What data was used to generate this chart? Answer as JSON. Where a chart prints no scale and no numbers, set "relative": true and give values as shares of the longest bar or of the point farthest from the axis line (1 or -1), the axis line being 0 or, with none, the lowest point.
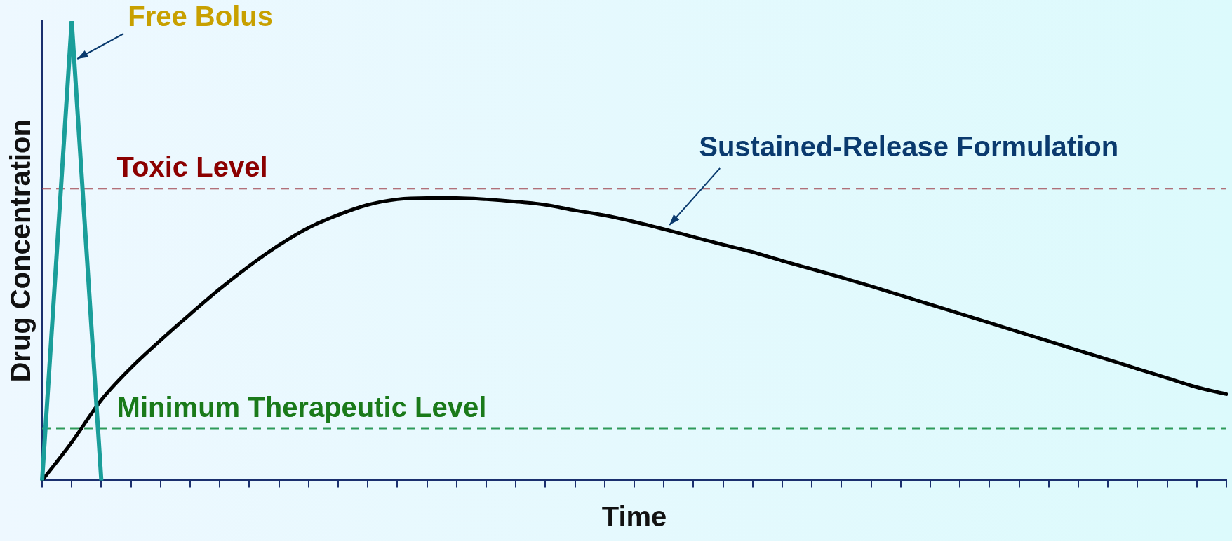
{
  "chart_data": {
    "type": "line",
    "xlabel": "Time",
    "ylabel": "Drug Concentration",
    "categories": [
      null,
      null,
      null,
      null,
      null,
      null,
      null,
      null,
      null,
      null,
      null,
      null,
      null,
      null,
      null,
      null,
      null,
      null,
      null,
      null,
      null,
      null,
      null,
      null,
      null,
      null,
      null,
      null,
      null,
      null,
      null,
      null,
      null,
      null,
      null,
      null,
      null,
      null,
      null,
      null,
      null
    ],
    "series": [
      {
        "name": "Free Bolus",
        "color": "#1a9e9a",
        "values": [
          0,
          1,
          0,
          null,
          null,
          null,
          null,
          null,
          null,
          null,
          null,
          null,
          null,
          null,
          null,
          null,
          null,
          null,
          null,
          null,
          null,
          null,
          null,
          null,
          null,
          null,
          null,
          null,
          null,
          null,
          null,
          null,
          null,
          null,
          null,
          null,
          null,
          null,
          null,
          null,
          null
        ]
      },
      {
        "name": "Sustained-Release Formulation",
        "color": "#000000",
        "values": [
          0,
          0.083,
          0.175,
          0.245,
          0.305,
          0.362,
          0.417,
          0.467,
          0.512,
          0.55,
          0.578,
          0.6,
          0.612,
          0.615,
          0.615,
          0.612,
          0.607,
          0.6,
          0.588,
          0.577,
          0.563,
          0.547,
          0.53,
          0.513,
          0.497,
          0.478,
          0.46,
          0.442,
          0.423,
          0.403,
          0.383,
          0.363,
          0.343,
          0.323,
          0.303,
          0.283,
          0.263,
          0.243,
          0.223,
          0.203,
          0.188
        ]
      }
    ],
    "relative": true,
    "ref_lines": [
      {
        "axis": "y",
        "value": 0.635,
        "label": "Toxic Level",
        "color": "#a0434e",
        "line_style": "dashed"
      },
      {
        "axis": "y",
        "value": 0.113,
        "label": "Minimum Therapeutic Level",
        "color": "#2e9a5a",
        "line_style": "dashed"
      }
    ],
    "legend": false,
    "grid": false
  }
}
